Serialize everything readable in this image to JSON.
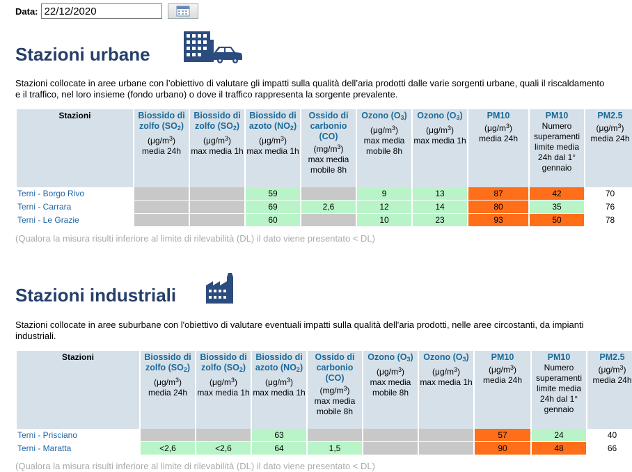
{
  "date": {
    "label": "Data:",
    "value": "22/12/2020"
  },
  "urban": {
    "title": "Stazioni urbane",
    "description": "Stazioni collocate in aree urbane con l’obiettivo di valutare gli impatti sulla qualità dell’aria prodotti dalle varie sorgenti urbane, quali il riscaldamento e il traffico, nel loro insieme (fondo urbano) o dove il traffico rappresenta la sorgente prevalente.",
    "rows": [
      {
        "name": "Terni - Borgo Rivo",
        "so2_24h": "",
        "so2_1h": "",
        "no2": "59",
        "co": "",
        "o3_8h": "9",
        "o3_1h": "13",
        "pm10": "87",
        "pm10_exc": "42",
        "pm25": "70"
      },
      {
        "name": "Terni - Carrara",
        "so2_24h": "",
        "so2_1h": "",
        "no2": "69",
        "co": "2,6",
        "o3_8h": "12",
        "o3_1h": "14",
        "pm10": "80",
        "pm10_exc": "35",
        "pm25": "76"
      },
      {
        "name": "Terni - Le Grazie",
        "so2_24h": "",
        "so2_1h": "",
        "no2": "60",
        "co": "",
        "o3_8h": "10",
        "o3_1h": "23",
        "pm10": "93",
        "pm10_exc": "50",
        "pm25": "78"
      }
    ],
    "note": "(Qualora la misura risulti inferiore al limite di rilevabilità (DL) il dato viene presentato < DL)"
  },
  "industrial": {
    "title": "Stazioni industriali",
    "description": "Stazioni collocate in aree suburbane con l'obiettivo di valutare eventuali impatti sulla qualità dell'aria prodotti, nelle aree circostanti, da impianti industriali.",
    "rows": [
      {
        "name": "Terni - Prisciano",
        "so2_24h": "",
        "so2_1h": "",
        "no2": "63",
        "co": "",
        "o3_8h": "",
        "o3_1h": "",
        "pm10": "57",
        "pm10_exc": "24",
        "pm25": "40"
      },
      {
        "name": "Terni - Maratta",
        "so2_24h": "<2,6",
        "so2_1h": "<2,6",
        "no2": "64",
        "co": "1,5",
        "o3_8h": "",
        "o3_1h": "",
        "pm10": "90",
        "pm10_exc": "48",
        "pm25": "66"
      }
    ],
    "note": "(Qualora la misura risulti inferiore al limite di rilevabilità (DL) il dato viene presentato < DL)"
  },
  "headers": {
    "stazioni": "Stazioni",
    "so2_name": "Biossido di zolfo",
    "so2_formula": "SO",
    "so2_sub": "2",
    "no2_name": "Biossido di azoto",
    "no2_formula": "NO",
    "no2_sub": "2",
    "co_name": "Ossido di carbonio",
    "co_formula": "(CO)",
    "o3_name": "Ozono",
    "o3_formula": "O",
    "o3_sub": "3",
    "pm10_name": "PM10",
    "pm25_name": "PM2.5",
    "unit_ugm3": "(μg/m",
    "unit_mgm3": "(mg/m",
    "unit_exp": "3",
    "media_24h": "media 24h",
    "max_media_1h": "max media 1h",
    "max_media_mobile_8h": "max media mobile 8h",
    "numero_superamenti": "Numero superamenti limite media 24h dal 1° gennaio"
  },
  "icons": {
    "calendar": "calendar-icon",
    "urban": "buildings-car-icon",
    "industrial": "factory-icon"
  },
  "colors": {
    "gray": "#c8c8c8",
    "green": "#b9f4c9",
    "orange": "#ff6f1a",
    "title": "#263f6a",
    "link": "#2066a6",
    "header_bg": "#d6e0e8"
  }
}
